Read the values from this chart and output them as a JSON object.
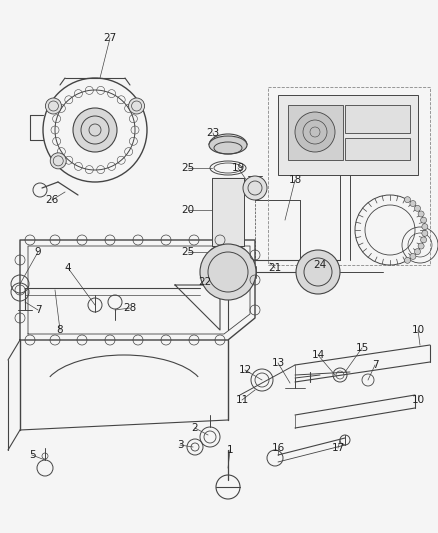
{
  "bg_color": "#f5f5f5",
  "line_color": "#444444",
  "label_color": "#222222",
  "font_size": 7.5,
  "figsize": [
    4.38,
    5.33
  ],
  "dpi": 100
}
